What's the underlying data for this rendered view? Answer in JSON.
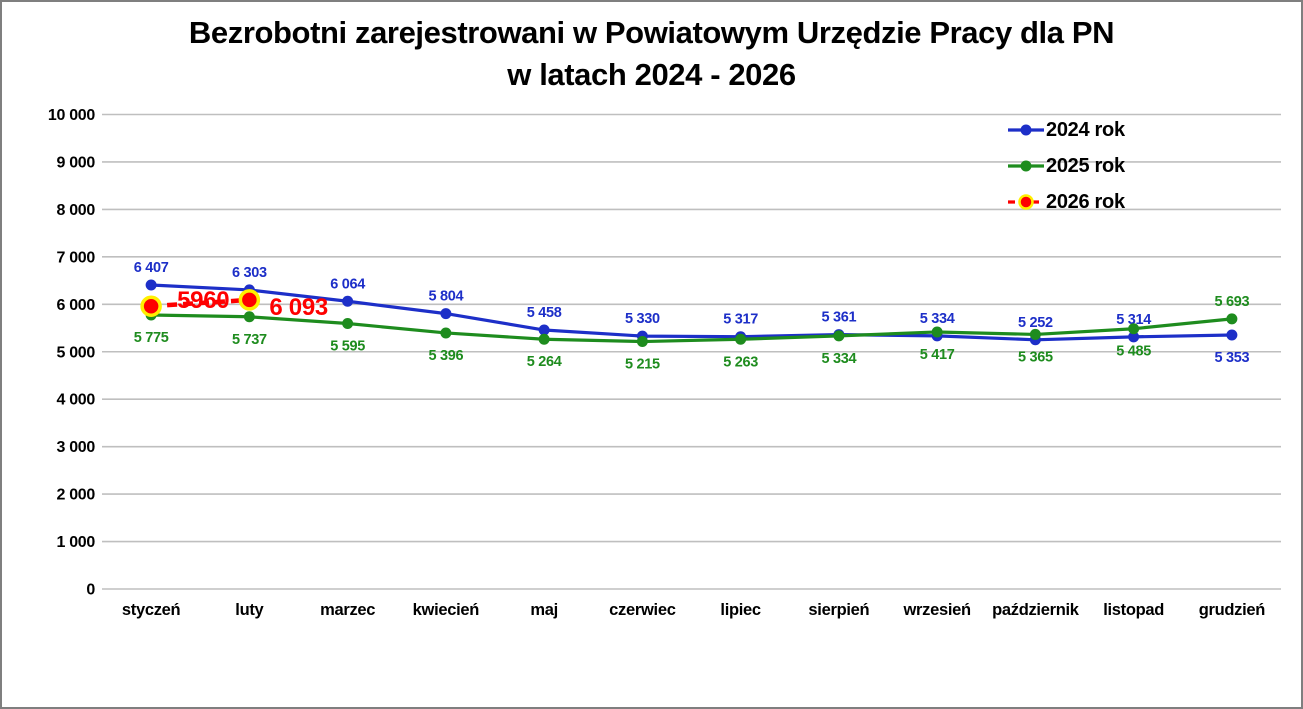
{
  "title": {
    "line1": "Bezrobotni zarejestrowani w Powiatowym Urzędzie Pracy dla PN",
    "line2": "w latach 2024 - 2026"
  },
  "chart_data": {
    "type": "line",
    "title": "Bezrobotni zarejestrowani w Powiatowym Urzędzie Pracy dla PN w latach 2024 - 2026",
    "categories": [
      "styczeń",
      "luty",
      "marzec",
      "kwiecień",
      "maj",
      "czerwiec",
      "lipiec",
      "sierpień",
      "wrzesień",
      "październik",
      "listopad",
      "grudzień"
    ],
    "ylim": [
      0,
      10000
    ],
    "y_tick_values": [
      0,
      1000,
      2000,
      3000,
      4000,
      5000,
      6000,
      7000,
      8000,
      9000,
      10000
    ],
    "y_tick_labels": [
      "0",
      "1 000",
      "2 000",
      "3 000",
      "4 000",
      "5 000",
      "6 000",
      "7 000",
      "8 000",
      "9 000",
      "10 000"
    ],
    "grid": "horizontal",
    "grid_color": "#bfbfbf",
    "legend_position": "top-right",
    "series": [
      {
        "name": "2024 rok",
        "color": "#1d2fc8",
        "dashed": false,
        "line_width": 3.2,
        "marker_r": 5.5,
        "label_size": 14.5,
        "values": [
          6407,
          6303,
          6064,
          5804,
          5458,
          5330,
          5317,
          5361,
          5334,
          5252,
          5314,
          5353
        ],
        "labels": [
          "6 407",
          "6 303",
          "6 064",
          "5 804",
          "5 458",
          "5 330",
          "5 317",
          "5 361",
          "5 334",
          "5 252",
          "5 314",
          "5 353"
        ],
        "label_side": [
          "above",
          "above",
          "above",
          "above",
          "above",
          "above",
          "above",
          "above",
          "above",
          "above",
          "above",
          "below"
        ]
      },
      {
        "name": "2025 rok",
        "color": "#1e8c1e",
        "dashed": false,
        "line_width": 3.2,
        "marker_r": 5.5,
        "label_size": 14.5,
        "values": [
          5775,
          5737,
          5595,
          5396,
          5264,
          5215,
          5263,
          5334,
          5417,
          5365,
          5485,
          5693
        ],
        "labels": [
          "5 775",
          "5 737",
          "5 595",
          "5 396",
          "5 264",
          "5 215",
          "5 263",
          "5 334",
          "5 417",
          "5 365",
          "5 485",
          "5 693"
        ],
        "label_side": [
          "below",
          "below",
          "below",
          "below",
          "below",
          "below",
          "below",
          "below",
          "below",
          "below",
          "below",
          "above"
        ]
      },
      {
        "name": "2026 rok",
        "color": "#fe0000",
        "dashed": true,
        "line_width": 4.5,
        "marker_r": 9,
        "marker_ring_color": "#fff000",
        "marker_ring_width": 3.5,
        "label_size": 24,
        "values": [
          5960,
          6093
        ],
        "labels": [
          "5960",
          "6 093"
        ],
        "label_offsets": [
          {
            "dx": 26,
            "dy": 2
          },
          {
            "dx": 20,
            "dy": 15
          }
        ]
      }
    ]
  }
}
